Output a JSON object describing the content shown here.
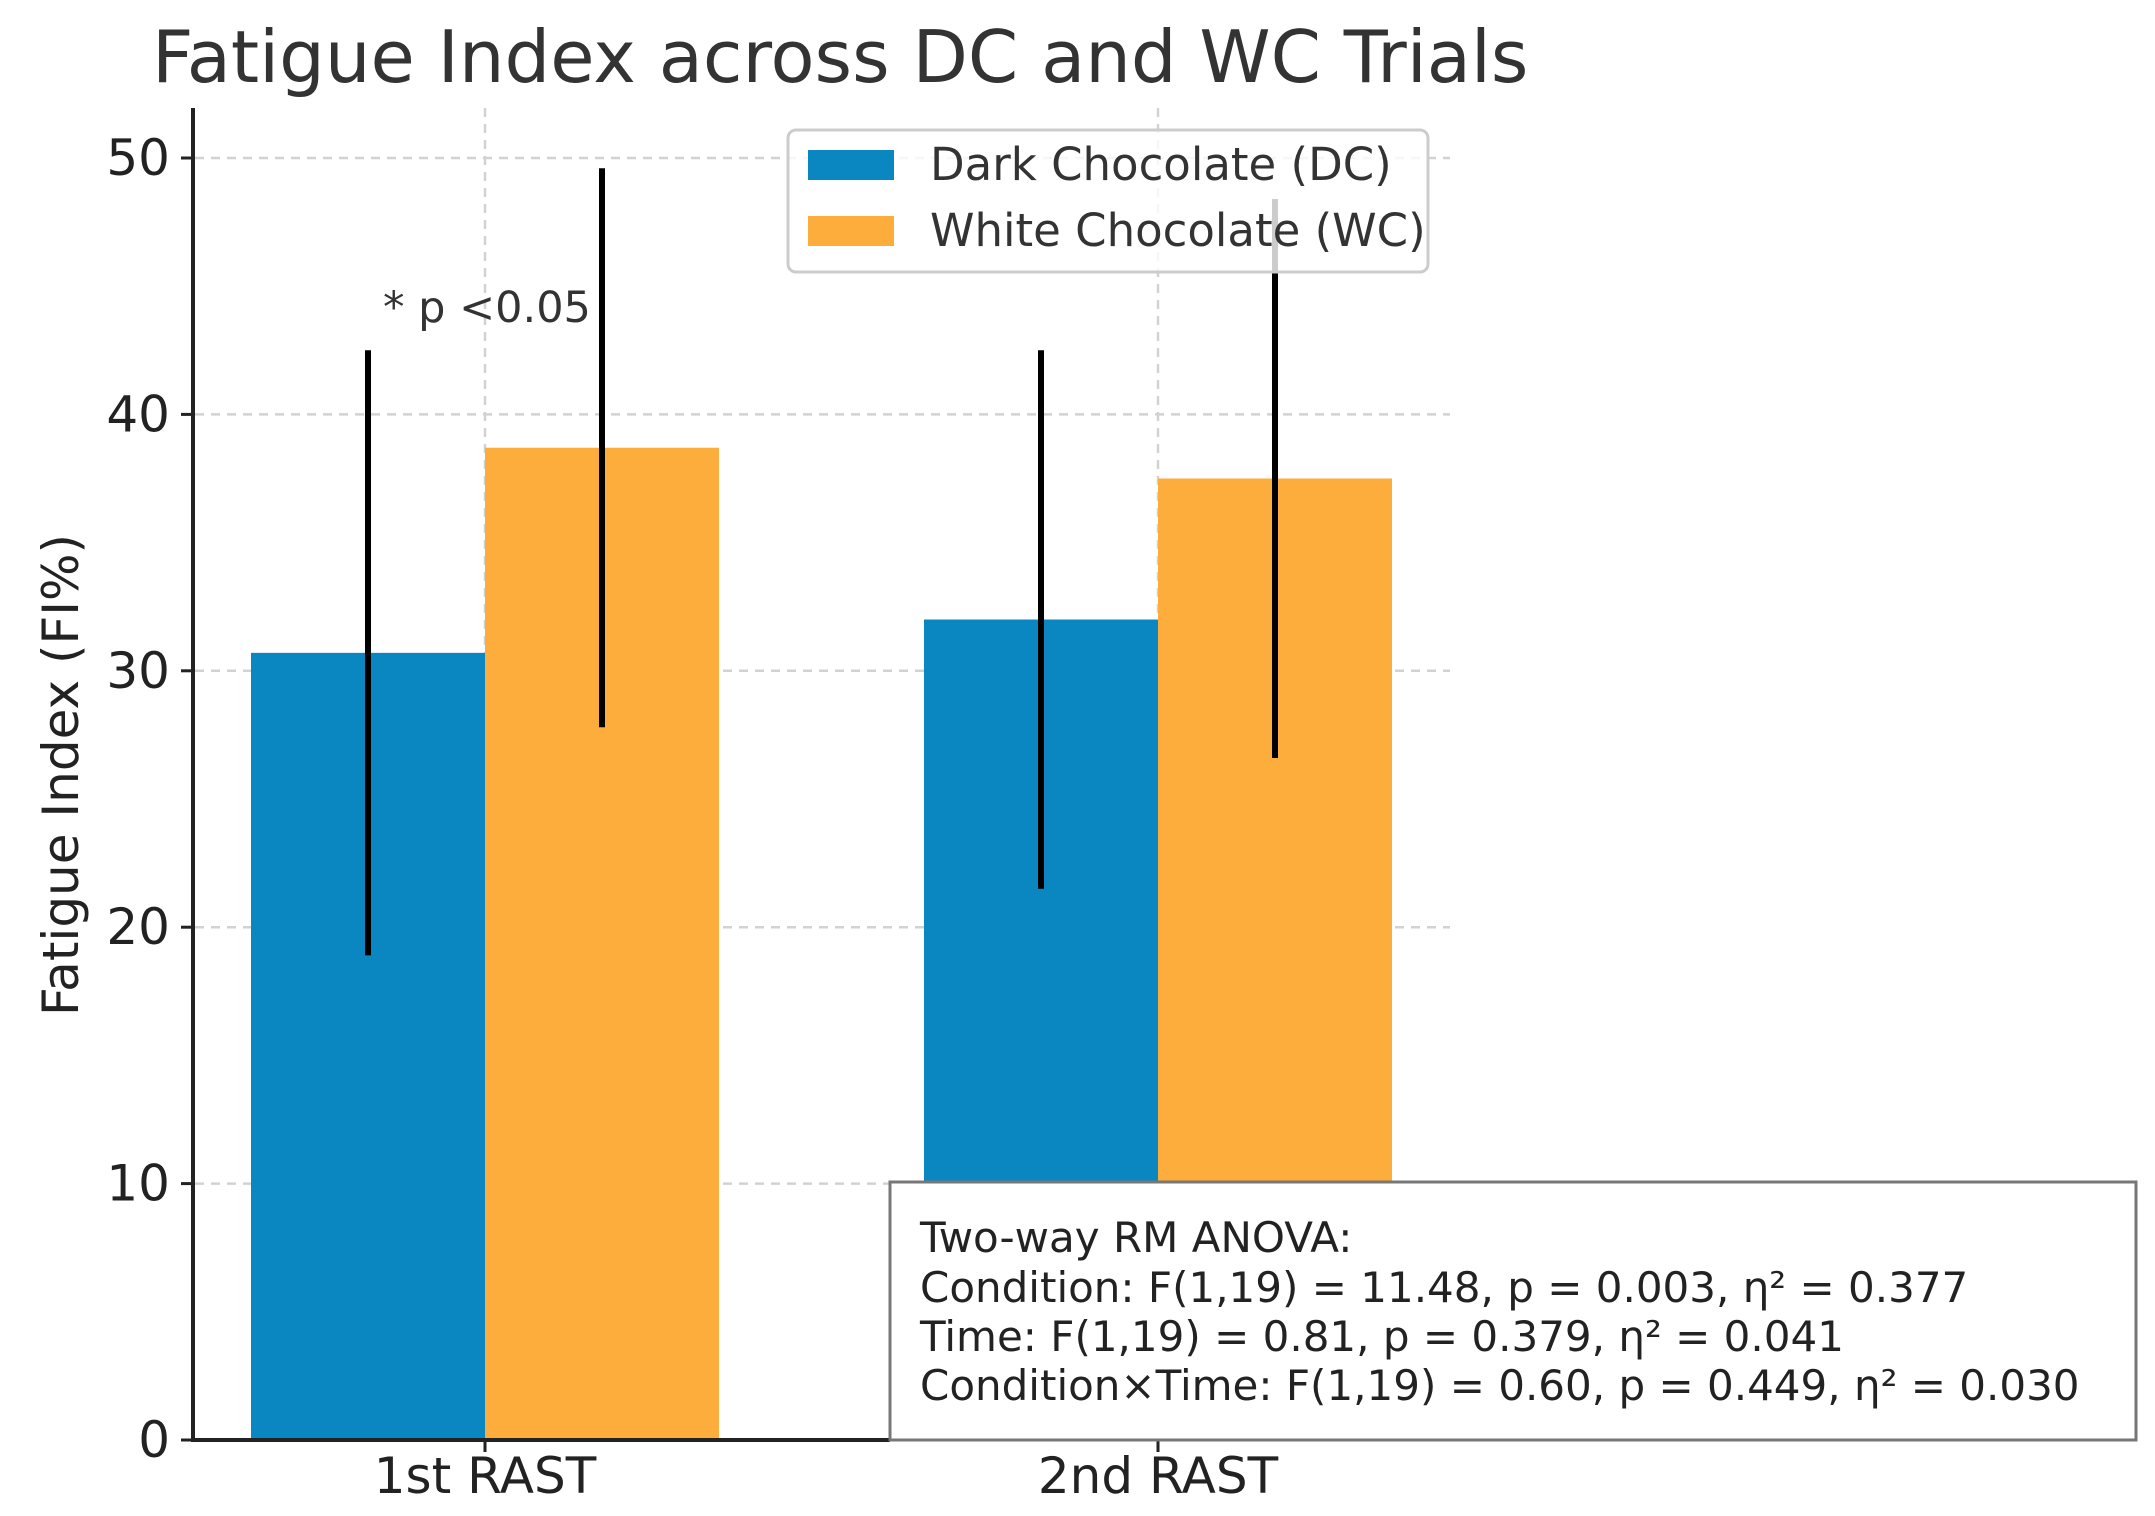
{
  "chart_data": {
    "type": "bar",
    "title": "Fatigue Index across DC and WC Trials",
    "xlabel": "",
    "ylabel": "Fatigue Index (FI%)",
    "categories": [
      "1st RAST",
      "2nd RAST"
    ],
    "series": [
      {
        "name": "Dark Chocolate (DC)",
        "color": "#0a86c1",
        "values": [
          30.7,
          32.0
        ],
        "error": [
          11.8,
          10.5
        ]
      },
      {
        "name": "White Chocolate (WC)",
        "color": "#fdad3b",
        "values": [
          38.7,
          37.5
        ],
        "error": [
          10.9,
          10.9
        ]
      }
    ],
    "ylim": [
      0,
      52
    ],
    "yticks": [
      0,
      10,
      20,
      30,
      40,
      50
    ],
    "grid": true,
    "legend_position": "top-center",
    "annotation": "* p <0.05",
    "stats_box": [
      "Two-way RM ANOVA:",
      "Condition: F(1,19) = 11.48, p = 0.003, η² = 0.377",
      "Time: F(1,19) = 0.81, p = 0.379, η² = 0.041",
      "Condition×Time: F(1,19) = 0.60, p = 0.449, η² = 0.030"
    ]
  }
}
